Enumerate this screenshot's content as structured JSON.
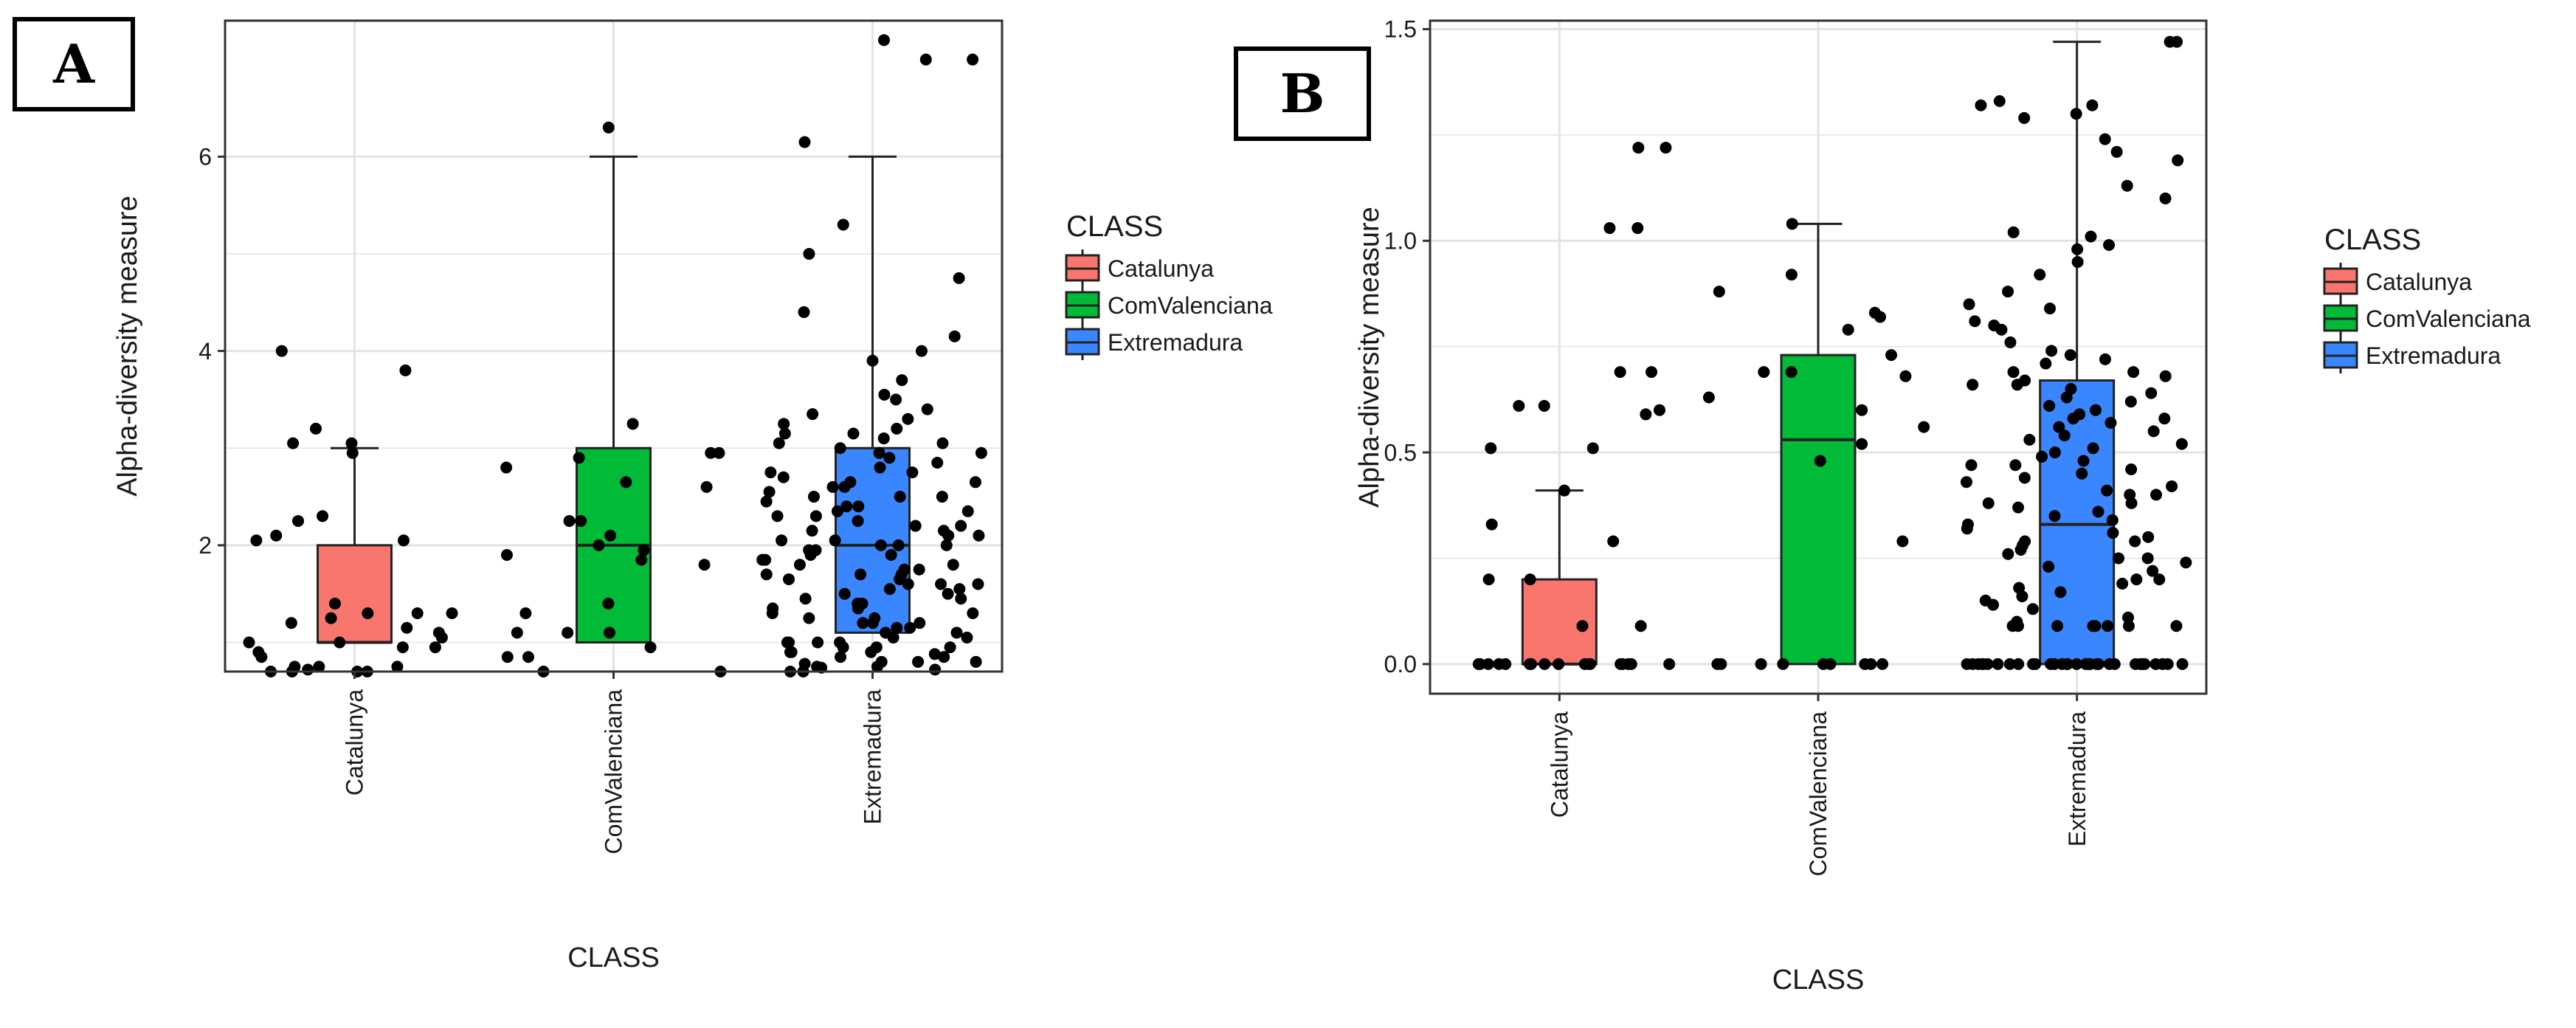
{
  "colors": {
    "catalunya": "#f8766d",
    "comvalenciana": "#00ba38",
    "extremadura": "#3a86ff",
    "grid": "#e3e3e3",
    "points": "#000000"
  },
  "chart_data": [
    {
      "type": "box",
      "panel": "A",
      "title": "",
      "xlabel": "CLASS",
      "ylabel": "Alpha-diversity measure",
      "ylim": [
        0.7,
        7.4
      ],
      "yticks": [
        2,
        4,
        6
      ],
      "ytick_labels": [
        "2",
        "4",
        "6"
      ],
      "categories": [
        "Catalunya",
        "ComValenciana",
        "Extremadura"
      ],
      "legend": {
        "title": "CLASS",
        "items": [
          "Catalunya",
          "ComValenciana",
          "Extremadura"
        ],
        "placement": "right"
      },
      "boxes": [
        {
          "category": "Catalunya",
          "q1": 1.0,
          "median": 1.0,
          "q3": 2.0,
          "whisker_low": 1.0,
          "whisker_high": 3.0
        },
        {
          "category": "ComValenciana",
          "q1": 1.0,
          "median": 2.0,
          "q3": 3.0,
          "whisker_low": 1.0,
          "whisker_high": 6.0
        },
        {
          "category": "Extremadura",
          "q1": 1.1,
          "median": 2.0,
          "q3": 3.0,
          "whisker_low": 1.1,
          "whisker_high": 6.0
        }
      ],
      "points": {
        "Catalunya": [
          1.4,
          3.05,
          0.75,
          0.85,
          2.95,
          2.1,
          2.25,
          3.8,
          4.0,
          3.2,
          2.3,
          2.05,
          1.15,
          1.3,
          1.2,
          1.05,
          1.0,
          0.9,
          0.7,
          0.95,
          0.75,
          0.7,
          2.05,
          0.7,
          1.0,
          0.95,
          1.3,
          0.75,
          1.3,
          1.25,
          3.05,
          0.7,
          0.72,
          1.1
        ],
        "ComValenciana": [
          1.1,
          3.25,
          2.1,
          1.95,
          2.25,
          1.9,
          0.7,
          0.85,
          0.85,
          2.95,
          1.1,
          1.8,
          2.6,
          2.25,
          1.3,
          2.9,
          2.65,
          2.8,
          1.85,
          1.4,
          1.1,
          0.7,
          6.3,
          0.95,
          2.0,
          2.95
        ],
        "Extremadura": [
          7.2,
          7.0,
          7.0,
          6.15,
          5.0,
          4.75,
          4.0,
          3.9,
          4.15,
          3.55,
          3.35,
          3.25,
          3.15,
          3.05,
          2.95,
          2.85,
          2.75,
          2.65,
          2.55,
          2.5,
          2.4,
          2.3,
          2.2,
          2.15,
          2.1,
          2.05,
          2.0,
          1.95,
          1.9,
          1.85,
          1.8,
          1.75,
          1.7,
          1.65,
          1.6,
          1.5,
          1.4,
          1.35,
          1.3,
          1.25,
          1.2,
          1.15,
          1.1,
          1.05,
          1.0,
          0.95,
          0.9,
          0.85,
          0.8,
          0.75,
          0.7,
          5.3,
          4.4,
          3.7,
          3.4,
          3.1,
          2.9,
          2.7,
          2.45,
          2.25,
          2.0,
          1.85,
          1.65,
          1.5,
          1.3,
          1.1,
          0.9,
          0.75,
          3.3,
          2.95,
          2.6,
          2.35,
          2.1,
          1.9,
          1.7,
          1.45,
          1.2,
          1.0,
          0.8,
          3.0,
          2.75,
          2.5,
          2.2,
          1.95,
          1.75,
          1.55,
          1.35,
          1.15,
          0.95,
          0.8,
          0.7,
          2.8,
          2.4,
          2.0,
          1.6,
          1.2,
          0.9,
          3.2,
          2.6,
          1.8,
          1.0,
          0.72,
          2.3,
          1.4,
          0.85,
          3.5,
          2.05,
          1.25,
          0.78,
          2.65,
          1.6,
          1.0,
          3.05,
          2.15,
          1.45,
          0.88,
          2.5,
          1.7,
          1.05,
          0.74,
          3.15,
          2.35,
          1.55,
          0.95
        ]
      }
    },
    {
      "type": "box",
      "panel": "B",
      "title": "",
      "xlabel": "CLASS",
      "ylabel": "Alpha-diversity measure",
      "ylim": [
        -0.07,
        1.52
      ],
      "yticks": [
        0.0,
        0.5,
        1.0,
        1.5
      ],
      "ytick_labels": [
        "0.0",
        "0.5",
        "1.0",
        "1.5"
      ],
      "categories": [
        "Catalunya",
        "ComValenciana",
        "Extremadura"
      ],
      "legend": {
        "title": "CLASS",
        "items": [
          "Catalunya",
          "ComValenciana",
          "Extremadura"
        ],
        "placement": "right"
      },
      "boxes": [
        {
          "category": "Catalunya",
          "q1": 0.0,
          "median": 0.0,
          "q3": 0.2,
          "whisker_low": 0.0,
          "whisker_high": 0.41
        },
        {
          "category": "ComValenciana",
          "q1": 0.0,
          "median": 0.53,
          "q3": 0.73,
          "whisker_low": 0.0,
          "whisker_high": 1.04
        },
        {
          "category": "Extremadura",
          "q1": 0.0,
          "median": 0.33,
          "q3": 0.67,
          "whisker_low": 0.0,
          "whisker_high": 1.47
        }
      ],
      "points": {
        "Catalunya": [
          0.0,
          0.51,
          0.0,
          0.6,
          0.69,
          0.0,
          0.0,
          1.22,
          1.22,
          1.03,
          1.03,
          0.41,
          0.33,
          0.2,
          0.09,
          0.09,
          0.0,
          0.0,
          0.0,
          0.0,
          0.0,
          0.69,
          0.61,
          0.59,
          0.51,
          0.0,
          0.0,
          0.0,
          0.2,
          0.0,
          0.0,
          0.61,
          0.0,
          0.0,
          0.29,
          0.0
        ],
        "ComValenciana": [
          0.29,
          0.0,
          0.68,
          0.48,
          0.79,
          0.52,
          0.0,
          0.0,
          0.73,
          0.0,
          0.0,
          0.0,
          0.69,
          0.6,
          0.83,
          0.88,
          0.92,
          1.04,
          0.82,
          0.69,
          0.63,
          0.56,
          0.0,
          0.0,
          0.0
        ],
        "Extremadura": [
          1.47,
          1.47,
          1.33,
          1.32,
          1.3,
          1.32,
          1.29,
          1.24,
          1.21,
          1.19,
          1.13,
          1.1,
          1.01,
          1.02,
          0.99,
          0.98,
          0.95,
          0.92,
          0.88,
          0.85,
          0.84,
          0.81,
          0.79,
          0.76,
          0.73,
          0.71,
          0.69,
          0.68,
          0.66,
          0.64,
          0.62,
          0.6,
          0.58,
          0.56,
          0.54,
          0.51,
          0.49,
          0.47,
          0.45,
          0.42,
          0.4,
          0.38,
          0.36,
          0.33,
          0.31,
          0.29,
          0.27,
          0.25,
          0.22,
          0.2,
          0.18,
          0.16,
          0.13,
          0.11,
          0.09,
          0.09,
          0.09,
          0.09,
          0.09,
          0.09,
          0.09,
          0.09,
          0.0,
          0.0,
          0.0,
          0.0,
          0.0,
          0.0,
          0.0,
          0.0,
          0.0,
          0.0,
          0.0,
          0.0,
          0.0,
          0.0,
          0.0,
          0.0,
          0.0,
          0.0,
          0.0,
          0.0,
          0.0,
          0.0,
          0.0,
          0.0,
          0.0,
          0.0,
          0.0,
          0.0,
          0.0,
          0.0,
          0.0,
          0.0,
          0.0,
          0.0,
          0.65,
          0.63,
          0.59,
          0.55,
          0.5,
          0.46,
          0.41,
          0.37,
          0.32,
          0.28,
          0.23,
          0.19,
          0.14,
          0.1,
          0.67,
          0.57,
          0.47,
          0.38,
          0.29,
          0.2,
          0.72,
          0.61,
          0.53,
          0.44,
          0.35,
          0.26,
          0.17,
          0.69,
          0.58,
          0.48,
          0.4,
          0.3,
          0.24,
          0.8,
          0.74,
          0.66,
          0.52,
          0.43,
          0.34,
          0.25,
          0.15
        ]
      }
    }
  ]
}
